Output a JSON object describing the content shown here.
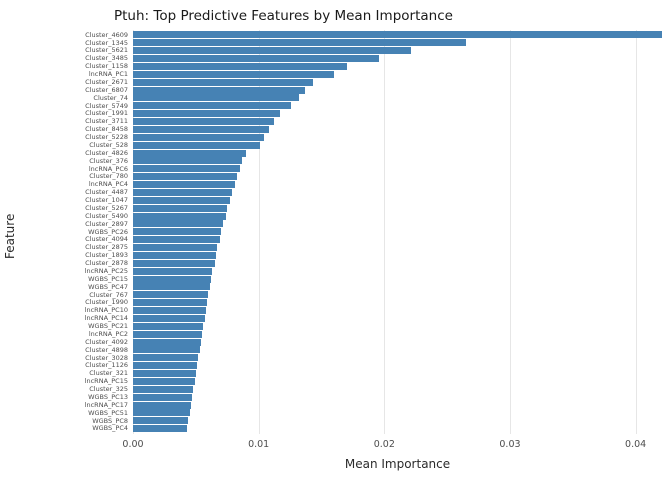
{
  "chart_data": {
    "type": "bar",
    "orientation": "horizontal",
    "title": "Ptuh: Top Predictive Features by Mean Importance",
    "xlabel": "Mean Importance",
    "ylabel": "Feature",
    "xlim": [
      0,
      0.0421
    ],
    "xticks": [
      0,
      0.01,
      0.02,
      0.03,
      0.04
    ],
    "xtick_labels": [
      "0.00",
      "0.01",
      "0.02",
      "0.03",
      "0.04"
    ],
    "bar_color": "#4682B4",
    "grid_color": "#e6e6e6",
    "legend": "none",
    "categories": [
      "Cluster_4609",
      "Cluster_1345",
      "Cluster_5621",
      "Cluster_3485",
      "Cluster_1158",
      "lncRNA_PC1",
      "Cluster_2671",
      "Cluster_6807",
      "Cluster_74",
      "Cluster_5749",
      "Cluster_1991",
      "Cluster_3711",
      "Cluster_8458",
      "Cluster_5228",
      "Cluster_528",
      "Cluster_4826",
      "Cluster_376",
      "lncRNA_PC6",
      "Cluster_780",
      "lncRNA_PC4",
      "Cluster_4487",
      "Cluster_1047",
      "Cluster_5267",
      "Cluster_5490",
      "Cluster_2897",
      "WGBS_PC26",
      "Cluster_4094",
      "Cluster_2875",
      "Cluster_1893",
      "Cluster_2878",
      "lncRNA_PC25",
      "WGBS_PC15",
      "WGBS_PC47",
      "Cluster_767",
      "Cluster_1990",
      "lncRNA_PC10",
      "lncRNA_PC14",
      "WGBS_PC21",
      "lncRNA_PC2",
      "Cluster_4092",
      "Cluster_4898",
      "Cluster_3028",
      "Cluster_1126",
      "Cluster_321",
      "lncRNA_PC15",
      "Cluster_325",
      "WGBS_PC13",
      "lncRNA_PC17",
      "WGBS_PC51",
      "WGBS_PC8",
      "WGBS_PC4"
    ],
    "values": [
      0.0421,
      0.0265,
      0.0221,
      0.0196,
      0.017,
      0.016,
      0.0143,
      0.0137,
      0.0132,
      0.0126,
      0.0117,
      0.0112,
      0.0108,
      0.0104,
      0.0101,
      0.009,
      0.0087,
      0.0085,
      0.0083,
      0.0081,
      0.0079,
      0.0077,
      0.0075,
      0.0074,
      0.0072,
      0.007,
      0.0069,
      0.0067,
      0.0066,
      0.0065,
      0.0063,
      0.0062,
      0.0061,
      0.006,
      0.0059,
      0.0058,
      0.0057,
      0.0056,
      0.0055,
      0.0054,
      0.0053,
      0.0052,
      0.0051,
      0.005,
      0.0049,
      0.0048,
      0.0047,
      0.0046,
      0.0045,
      0.0044,
      0.0043
    ]
  }
}
